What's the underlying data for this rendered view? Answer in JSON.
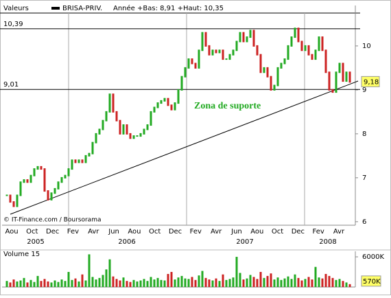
{
  "chart_data": {
    "type": "candle",
    "header": "Valeurs",
    "range_text": "Année +Bas: 8,91 +Haut: 10,35",
    "source": "© IT-Finance.com / Boursorama",
    "annotation": "Zona de suporte",
    "x_labels": [
      "Aou",
      "Oct",
      "Dec",
      "Fev",
      "Avr",
      "Jun",
      "Aou",
      "Oct",
      "Dec",
      "Fev",
      "Avr",
      "Jun",
      "Aou",
      "Oct",
      "Dec",
      "Fev",
      "Avr"
    ],
    "years": [
      "2005",
      "2006",
      "2007",
      "2008"
    ],
    "series": [
      {
        "name": "BRISA-PRIV.",
        "color": "#000000",
        "up_color": "#22aa22",
        "down_color": "#cc2222",
        "values": [
          6.6,
          6.45,
          6.35,
          6.6,
          6.9,
          6.95,
          6.9,
          7.05,
          7.2,
          7.25,
          7.2,
          6.7,
          6.5,
          6.65,
          6.75,
          6.9,
          7.0,
          7.05,
          7.2,
          7.4,
          7.35,
          7.4,
          7.35,
          7.5,
          7.55,
          7.8,
          8.0,
          8.1,
          8.3,
          8.5,
          8.9,
          8.5,
          8.3,
          8.0,
          8.2,
          8.0,
          7.9,
          7.95,
          7.95,
          8.0,
          8.1,
          8.2,
          8.5,
          8.6,
          8.7,
          8.75,
          8.8,
          8.65,
          8.55,
          8.7,
          9.0,
          9.3,
          9.5,
          9.7,
          9.6,
          9.5,
          9.9,
          10.3,
          10.0,
          9.8,
          9.9,
          9.85,
          9.9,
          9.7,
          9.7,
          9.8,
          9.9,
          10.1,
          10.3,
          10.1,
          10.2,
          10.35,
          10.0,
          9.8,
          9.4,
          9.5,
          9.3,
          9.0,
          9.1,
          9.5,
          9.6,
          9.7,
          10.0,
          10.2,
          10.4,
          10.1,
          9.9,
          10.0,
          9.8,
          9.7,
          9.9,
          10.2,
          9.9,
          9.4,
          9.0,
          8.95,
          9.4,
          9.6,
          9.2,
          9.4,
          9.18
        ]
      }
    ],
    "ylim": [
      5.92,
      10.92
    ],
    "yticks": [
      6,
      7,
      8,
      9,
      10
    ],
    "levels": [
      {
        "value": 10.39,
        "label": "10,39"
      },
      {
        "value": 9.01,
        "label": "9,01"
      }
    ],
    "last_price": {
      "value": 9.18,
      "label": "9,18"
    },
    "volume": {
      "title": "Volume 15",
      "values": [
        1200000,
        900000,
        1500000,
        1100000,
        1300000,
        1800000,
        900000,
        1400000,
        1000000,
        2200000,
        1200000,
        1600000,
        1100000,
        900000,
        1300000,
        1000000,
        1500000,
        1200000,
        3000000,
        1400000,
        1700000,
        1100000,
        2500000,
        1300000,
        6500000,
        2000000,
        1500000,
        1800000,
        2400000,
        3500000,
        5500000,
        2100000,
        1600000,
        1300000,
        1900000,
        1200000,
        1000000,
        1400000,
        1100000,
        1300000,
        1600000,
        1200000,
        2000000,
        1500000,
        1800000,
        1400000,
        1300000,
        2600000,
        3000000,
        1500000,
        1900000,
        2200000,
        1700000,
        1600000,
        2000000,
        1400000,
        2300000,
        3200000,
        1800000,
        1500000,
        1300000,
        1700000,
        1200000,
        2500000,
        1400000,
        1600000,
        1900000,
        6000000,
        2800000,
        1500000,
        1700000,
        2400000,
        2000000,
        1600000,
        3000000,
        1800000,
        2200000,
        2700000,
        1500000,
        1900000,
        1400000,
        1700000,
        2100000,
        1600000,
        2500000,
        1800000,
        1300000,
        1600000,
        2000000,
        1500000,
        4000000,
        1900000,
        1700000,
        2600000,
        2200000,
        1800000,
        1400000,
        1600000,
        1200000,
        900000,
        570000
      ],
      "ylim": [
        0,
        7100000
      ],
      "yticks": [
        {
          "value": 6000000,
          "label": "6000K"
        }
      ],
      "last": {
        "value": 570000,
        "label": "570K"
      }
    }
  }
}
